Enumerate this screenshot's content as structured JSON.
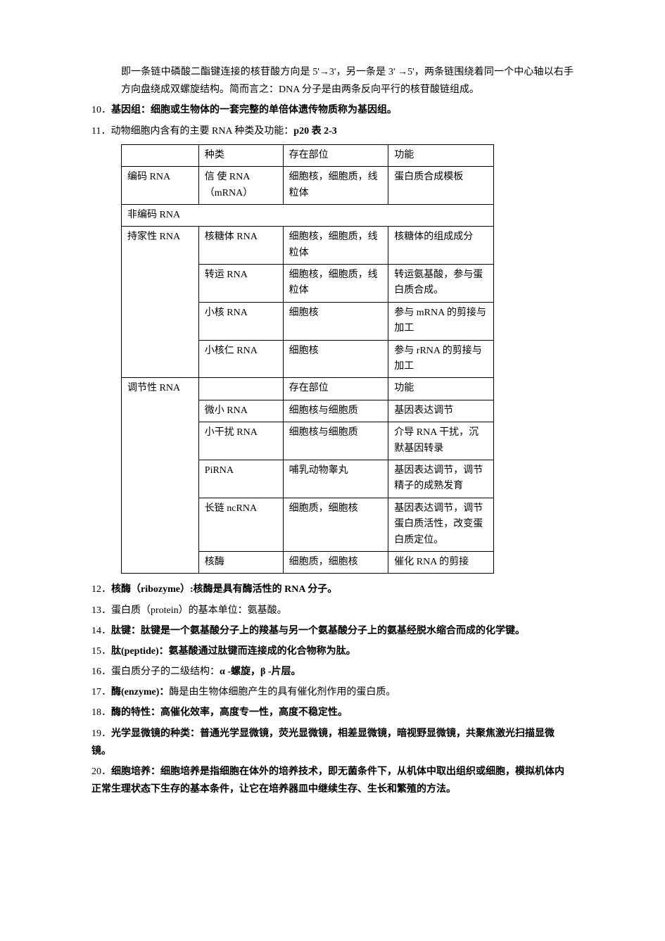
{
  "intro": {
    "line1": "即一条链中磷酸二酯键连接的核苷酸方向是 5'→3'，另一条是 3' →5'，两条链围绕着同一个中心轴以右手方向盘绕成双螺旋结构。简而言之：DNA 分子是由两条反向平行的核苷酸链组成。"
  },
  "item10": {
    "num": "10．",
    "label": "基因组：",
    "text": "细胞或生物体的一套完整的单倍体遗传物质称为基因组。"
  },
  "item11": {
    "num": "11．",
    "text": "动物细胞内含有的主要 RNA 种类及功能：",
    "ref": "p20 表 2-3"
  },
  "table": {
    "header": {
      "c1": "",
      "c2": "种类",
      "c3": "存在部位",
      "c4": "功能"
    },
    "rows": [
      {
        "c1": "编码 RNA",
        "c2": "信 使 RNA（mRNA）",
        "c3": "细胞核，细胞质，线粒体",
        "c4": "蛋白质合成模板"
      },
      {
        "c1": "非编码 RNA",
        "colspan": 4
      },
      {
        "c1": "持家性 RNA",
        "c2": "核糖体 RNA",
        "c3": "细胞核，细胞质，线粒体",
        "c4": "核糖体的组成成分",
        "rowspan1": 4
      },
      {
        "c2": "转运 RNA",
        "c3": "细胞核，细胞质，线粒体",
        "c4": "转运氨基酸，参与蛋白质合成。"
      },
      {
        "c2": "小核 RNA",
        "c3": "细胞核",
        "c4": "参与 mRNA 的剪接与加工"
      },
      {
        "c2": "小核仁 RNA",
        "c3": "细胞核",
        "c4": "参与 rRNA 的剪接与加工"
      },
      {
        "c1": "调节性 RNA",
        "c2": "",
        "c3": "存在部位",
        "c4": "功能",
        "rowspan1": 6
      },
      {
        "c2": "微小 RNA",
        "c3": "细胞核与细胞质",
        "c4": "基因表达调节"
      },
      {
        "c2": "小干扰 RNA",
        "c3": "细胞核与细胞质",
        "c4": "介导 RNA 干扰，沉默基因转录"
      },
      {
        "c2": "PiRNA",
        "c3": "哺乳动物睾丸",
        "c4": "基因表达调节，调节精子的成熟发育"
      },
      {
        "c2": "长链 ncRNA",
        "c3": "细胞质，细胞核",
        "c4": "基因表达调节，调节蛋白质活性，改变蛋白质定位。"
      },
      {
        "c2": "核酶",
        "c3": "细胞质，细胞核",
        "c4": "催化 RNA 的剪接"
      }
    ]
  },
  "item12": {
    "num": "12．",
    "label": "核酶（ribozyme）:",
    "text": "核酶是具有酶活性的 RNA 分子。"
  },
  "item13": {
    "num": "13．",
    "text": "蛋白质（protein）的基本单位：氨基酸。"
  },
  "item14": {
    "num": "14．",
    "label": "肽键：",
    "text": "肽键是一个氨基酸分子上的羧基与另一个氨基酸分子上的氨基经脱水缩合而成的化学键。"
  },
  "item15": {
    "num": "15．",
    "label": "肽(peptide)：",
    "text": "氨基酸通过肽键而连接成的化合物称为肽。"
  },
  "item16": {
    "num": "16．",
    "text": "蛋白质分子的二级结构：",
    "bold": "α -螺旋，β -片层。"
  },
  "item17": {
    "num": "17．",
    "label": "酶(enzyme)：",
    "text": "酶是由生物体细胞产生的具有催化剂作用的蛋白质。"
  },
  "item18": {
    "num": "18．",
    "label": "酶的特性：",
    "text": "高催化效率，高度专一性，高度不稳定性。"
  },
  "item19": {
    "num": "19．",
    "label": "光学显微镜的种类：",
    "text": "普通光学显微镜，荧光显微镜，相差显微镜，暗视野显微镜，共聚焦激光扫描显微镜。"
  },
  "item20": {
    "num": "20．",
    "label": "细胞培养：",
    "text": "细胞培养是指细胞在体外的培养技术，即无菌条件下，从机体中取出组织或细胞，模拟机体内正常生理状态下生存的基本条件，让它在培养器皿中继续生存、生长和繁殖的方法。"
  }
}
